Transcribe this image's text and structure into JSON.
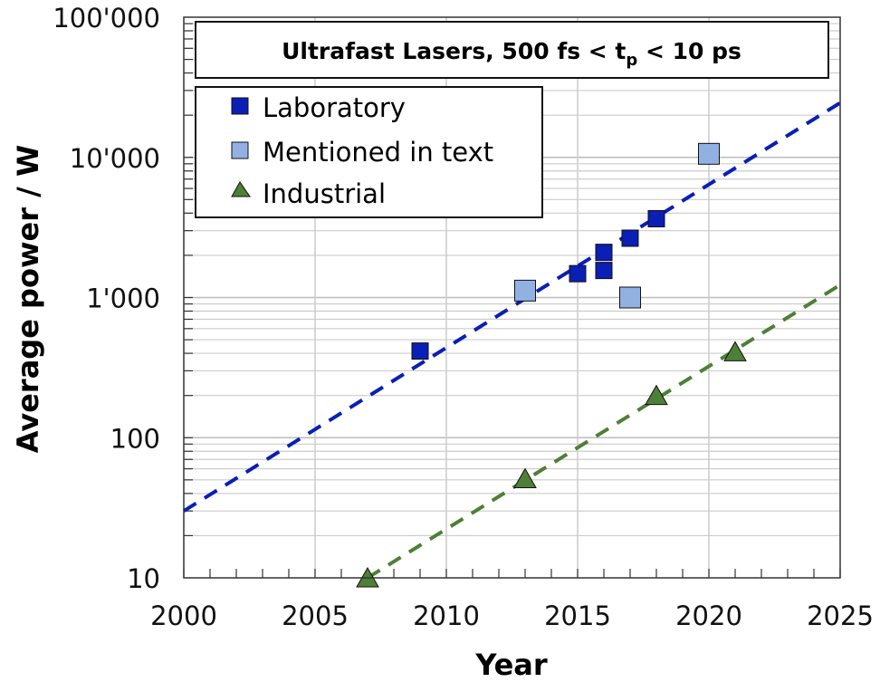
{
  "chart_data": {
    "type": "scatter",
    "title": "Ultrafast Lasers, 500 fs < t",
    "title_sub": "p",
    "title_tail": " < 10 ps",
    "xlabel": "Year",
    "ylabel": "Average power / W",
    "xlim": [
      2000,
      2025
    ],
    "ylim": [
      10,
      100000
    ],
    "yscale": "log",
    "grid": true,
    "legend_placement": "top-left",
    "x_ticks": [
      "2000",
      "2005",
      "2010",
      "2015",
      "2020",
      "2025"
    ],
    "y_ticks": [
      "10",
      "100",
      "1'000",
      "10'000",
      "100'000"
    ],
    "series": [
      {
        "name": "Laboratory",
        "marker": "square",
        "color": "#0a1fb5",
        "points": [
          [
            2009,
            415
          ],
          [
            2015,
            1480
          ],
          [
            2016,
            2100
          ],
          [
            2016,
            1560
          ],
          [
            2017,
            2650
          ],
          [
            2018,
            3650
          ]
        ]
      },
      {
        "name": "Mentioned in text",
        "marker": "square",
        "color": "#92b1e3",
        "points": [
          [
            2013,
            1120
          ],
          [
            2017,
            1000
          ],
          [
            2020,
            10600
          ]
        ]
      },
      {
        "name": "Industrial",
        "marker": "triangle",
        "color": "#4e7f36",
        "points": [
          [
            2007,
            10
          ],
          [
            2013,
            51
          ],
          [
            2018,
            200
          ],
          [
            2021,
            410
          ]
        ]
      }
    ],
    "trendlines": [
      {
        "color": "#0a1fb5",
        "from": [
          2000,
          30
        ],
        "to": [
          2025,
          24500
        ]
      },
      {
        "color": "#4e7f36",
        "from": [
          2007,
          10
        ],
        "to": [
          2025,
          1230
        ]
      }
    ]
  }
}
